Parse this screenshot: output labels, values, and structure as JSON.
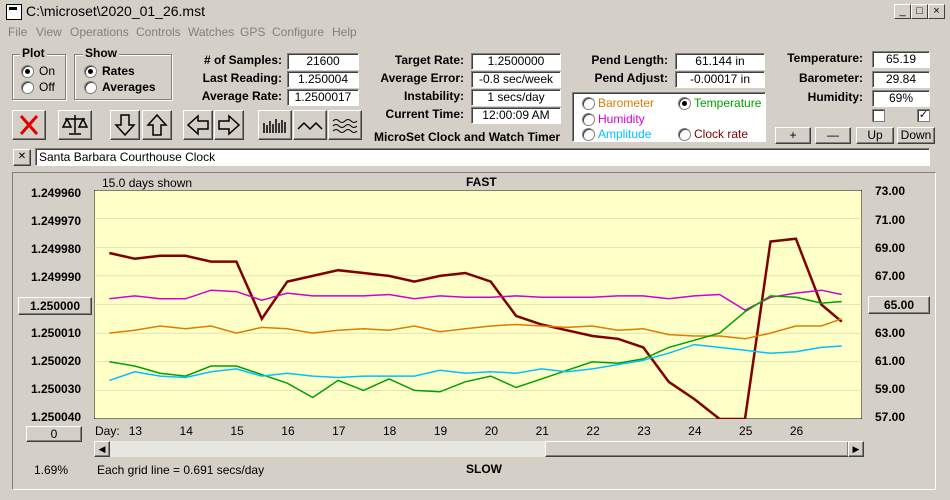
{
  "window": {
    "title": "C:\\microset\\2020_01_26.mst"
  },
  "menu": [
    "File",
    "View",
    "Operations",
    "Controls",
    "Watches",
    "GPS",
    "Configure",
    "Help"
  ],
  "plot_group": {
    "title": "Plot",
    "options": [
      "On",
      "Off"
    ],
    "selected": "On"
  },
  "show_group": {
    "title": "Show",
    "options": [
      "Rates",
      "Averages"
    ],
    "selected": "Rates"
  },
  "stats": {
    "samples_label": "# of Samples:",
    "samples": "21600",
    "last_label": "Last Reading:",
    "last": "1.250004",
    "avg_label": "Average Rate:",
    "avg": "1.2500017",
    "target_label": "Target Rate:",
    "target": "1.2500000",
    "error_label": "Average Error:",
    "error": "-0.8 sec/week",
    "instab_label": "Instability:",
    "instab": "1 secs/day",
    "time_label": "Current Time:",
    "time": "12:00:09 AM",
    "pend_len_label": "Pend Length:",
    "pend_len": "61.144 in",
    "pend_adj_label": "Pend Adjust:",
    "pend_adj": "-0.00017 in",
    "temp_label": "Temperature:",
    "temp": "65.19",
    "baro_label": "Barometer:",
    "baro": "29.84",
    "hum_label": "Humidity:",
    "hum": "69%"
  },
  "app_caption": "MicroSet Clock and Watch Timer",
  "legend": {
    "barometer": {
      "label": "Barometer",
      "color": "#e07b00"
    },
    "temperature": {
      "label": "Temperature",
      "color": "#00a000"
    },
    "humidity": {
      "label": "Humidity",
      "color": "#d000d0"
    },
    "amplitude": {
      "label": "Amplitude",
      "color": "#00c0ff"
    },
    "clock": {
      "label": "Clock rate",
      "color": "#800000"
    },
    "selected": "Temperature"
  },
  "small_buttons": {
    "plus": "+",
    "minus": "—",
    "up": "Up",
    "down": "Down"
  },
  "checkbox_right": "✓",
  "clock_name": "Santa Barbara Courthouse Clock",
  "close_x": "✕",
  "chart_header": {
    "left": "15.0 days shown",
    "center": "FAST",
    "bottom": "SLOW"
  },
  "left_axis": [
    "1.249960",
    "1.249970",
    "1.249980",
    "1.249990",
    "1.250000",
    "1.250010",
    "1.250020",
    "1.250030",
    "1.250040"
  ],
  "right_axis": [
    "73.00",
    "71.00",
    "69.00",
    "67.00",
    "65.00",
    "63.00",
    "61.00",
    "59.00",
    "57.00"
  ],
  "left_button": "1.250000",
  "right_button": "65.00",
  "zero_button": "0",
  "day_label": "Day:",
  "days": [
    "13",
    "14",
    "15",
    "16",
    "17",
    "18",
    "19",
    "20",
    "21",
    "22",
    "23",
    "24",
    "25",
    "26"
  ],
  "footer": {
    "pct": "1.69%",
    "grid": "Each grid line = 0.691 secs/day"
  },
  "chart_data": {
    "type": "line",
    "x": [
      12.5,
      13,
      13.5,
      14,
      14.5,
      15,
      15.5,
      16,
      16.5,
      17,
      17.5,
      18,
      18.5,
      19,
      19.5,
      20,
      20.5,
      21,
      21.5,
      22,
      22.5,
      23,
      23.5,
      24,
      24.5,
      25,
      25.5,
      26,
      26.5,
      26.9
    ],
    "x_range": [
      12.2,
      27.3
    ],
    "series": [
      {
        "name": "Clock rate",
        "color": "#800000",
        "axis": "left",
        "values": [
          1.249982,
          1.249984,
          1.249983,
          1.249983,
          1.249985,
          1.249985,
          1.250005,
          1.249992,
          1.24999,
          1.249988,
          1.249989,
          1.24999,
          1.249992,
          1.24999,
          1.249989,
          1.249992,
          1.250004,
          1.250007,
          1.250009,
          1.250011,
          1.250012,
          1.250015,
          1.250027,
          1.250033,
          1.25004,
          1.25004,
          1.249978,
          1.249977,
          1.25,
          1.250006
        ]
      },
      {
        "name": "Humidity",
        "color": "#d000d0",
        "axis": "right",
        "values": [
          65.4,
          65.6,
          65.4,
          65.4,
          66.0,
          65.9,
          65.3,
          65.8,
          65.6,
          65.6,
          65.6,
          65.7,
          65.4,
          65.6,
          65.5,
          65.5,
          65.6,
          65.5,
          65.5,
          65.5,
          65.6,
          65.6,
          65.4,
          65.6,
          65.7,
          64.6,
          65.5,
          65.8,
          66.0,
          65.7
        ]
      },
      {
        "name": "Barometer",
        "color": "#e07b00",
        "axis": "right",
        "values": [
          63.0,
          63.2,
          63.5,
          63.3,
          63.5,
          63.0,
          63.4,
          63.3,
          63.0,
          63.2,
          63.3,
          63.2,
          63.5,
          63.1,
          63.3,
          63.5,
          63.6,
          63.5,
          63.4,
          63.5,
          63.2,
          63.3,
          62.9,
          62.8,
          62.8,
          62.6,
          63.0,
          63.5,
          63.5,
          64.0
        ]
      },
      {
        "name": "Temperature",
        "color": "#00a000",
        "axis": "right",
        "values": [
          61.0,
          60.7,
          60.2,
          60.0,
          60.7,
          60.7,
          60.1,
          59.5,
          58.5,
          59.7,
          59.0,
          59.8,
          59.0,
          58.9,
          59.6,
          60.0,
          59.2,
          59.8,
          60.4,
          61.0,
          60.9,
          61.2,
          62.0,
          62.5,
          63.0,
          64.5,
          65.6,
          65.5,
          65.1,
          65.2
        ]
      },
      {
        "name": "Amplitude",
        "color": "#00c0ff",
        "axis": "right",
        "values": [
          59.7,
          60.3,
          60.0,
          59.9,
          60.3,
          60.5,
          60.0,
          60.2,
          60.0,
          59.9,
          60.0,
          60.0,
          60.0,
          60.4,
          60.2,
          60.3,
          60.2,
          60.5,
          60.3,
          60.5,
          60.8,
          61.1,
          61.6,
          62.2,
          62.0,
          61.8,
          61.6,
          61.7,
          62.0,
          62.1
        ]
      }
    ],
    "left_range": [
      1.24996,
      1.25004
    ],
    "right_range": [
      73,
      57
    ],
    "grid": "horizontal"
  }
}
